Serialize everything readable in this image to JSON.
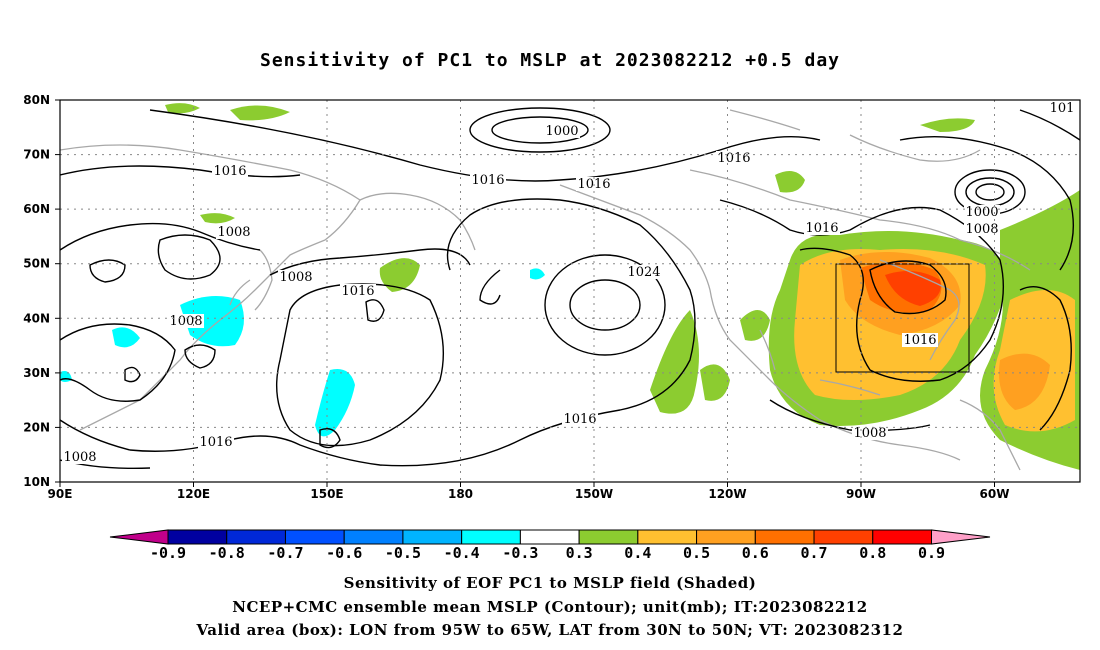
{
  "title": "Sensitivity of PC1 to MSLP at 2023082212 +0.5 day",
  "map": {
    "lat_labels": [
      "80N",
      "70N",
      "60N",
      "50N",
      "40N",
      "30N",
      "20N",
      "10N"
    ],
    "lon_labels": [
      "90E",
      "120E",
      "150E",
      "180",
      "150W",
      "120W",
      "90W",
      "60W"
    ],
    "contour_labels": [
      "1000",
      "1016",
      "1016",
      "1016",
      "1016",
      "1008",
      "1008",
      "1016",
      "1008",
      "1024",
      "1016",
      "1016",
      "1008",
      "1016",
      "1000",
      "1008",
      "1016",
      "1008",
      "101"
    ],
    "valid_box": {
      "lon_from": "95W",
      "lon_to": "65W",
      "lat_from": "30N",
      "lat_to": "50N"
    }
  },
  "colorbar": {
    "labels": [
      "-0.9",
      "-0.8",
      "-0.7",
      "-0.6",
      "-0.5",
      "-0.4",
      "-0.3",
      "0.3",
      "0.4",
      "0.5",
      "0.6",
      "0.7",
      "0.8",
      "0.9"
    ],
    "colors": [
      "#0000a0",
      "#0028d8",
      "#0050ff",
      "#0080ff",
      "#00b4ff",
      "#00ffff",
      "#ffffff",
      "#8ccc30",
      "#ffc030",
      "#ffa020",
      "#ff7000",
      "#ff4000",
      "#ff0000"
    ],
    "left_arrow_color": "#c0008a",
    "right_arrow_color": "#ffa0c8"
  },
  "captions": [
    "Sensitivity of EOF PC1 to MSLP field (Shaded)",
    "NCEP+CMC ensemble mean MSLP (Contour); unit(mb); IT:2023082212",
    "Valid area (box): LON from 95W to 65W, LAT from 30N to 50N; VT: 2023082312"
  ],
  "colors": {
    "positive_low": "#8ccc30",
    "positive_mid": "#ffc030",
    "positive_high": "#ff7000",
    "positive_peak": "#ff4000",
    "negative": "#00ffff",
    "coastline": "#a8a8a8"
  }
}
